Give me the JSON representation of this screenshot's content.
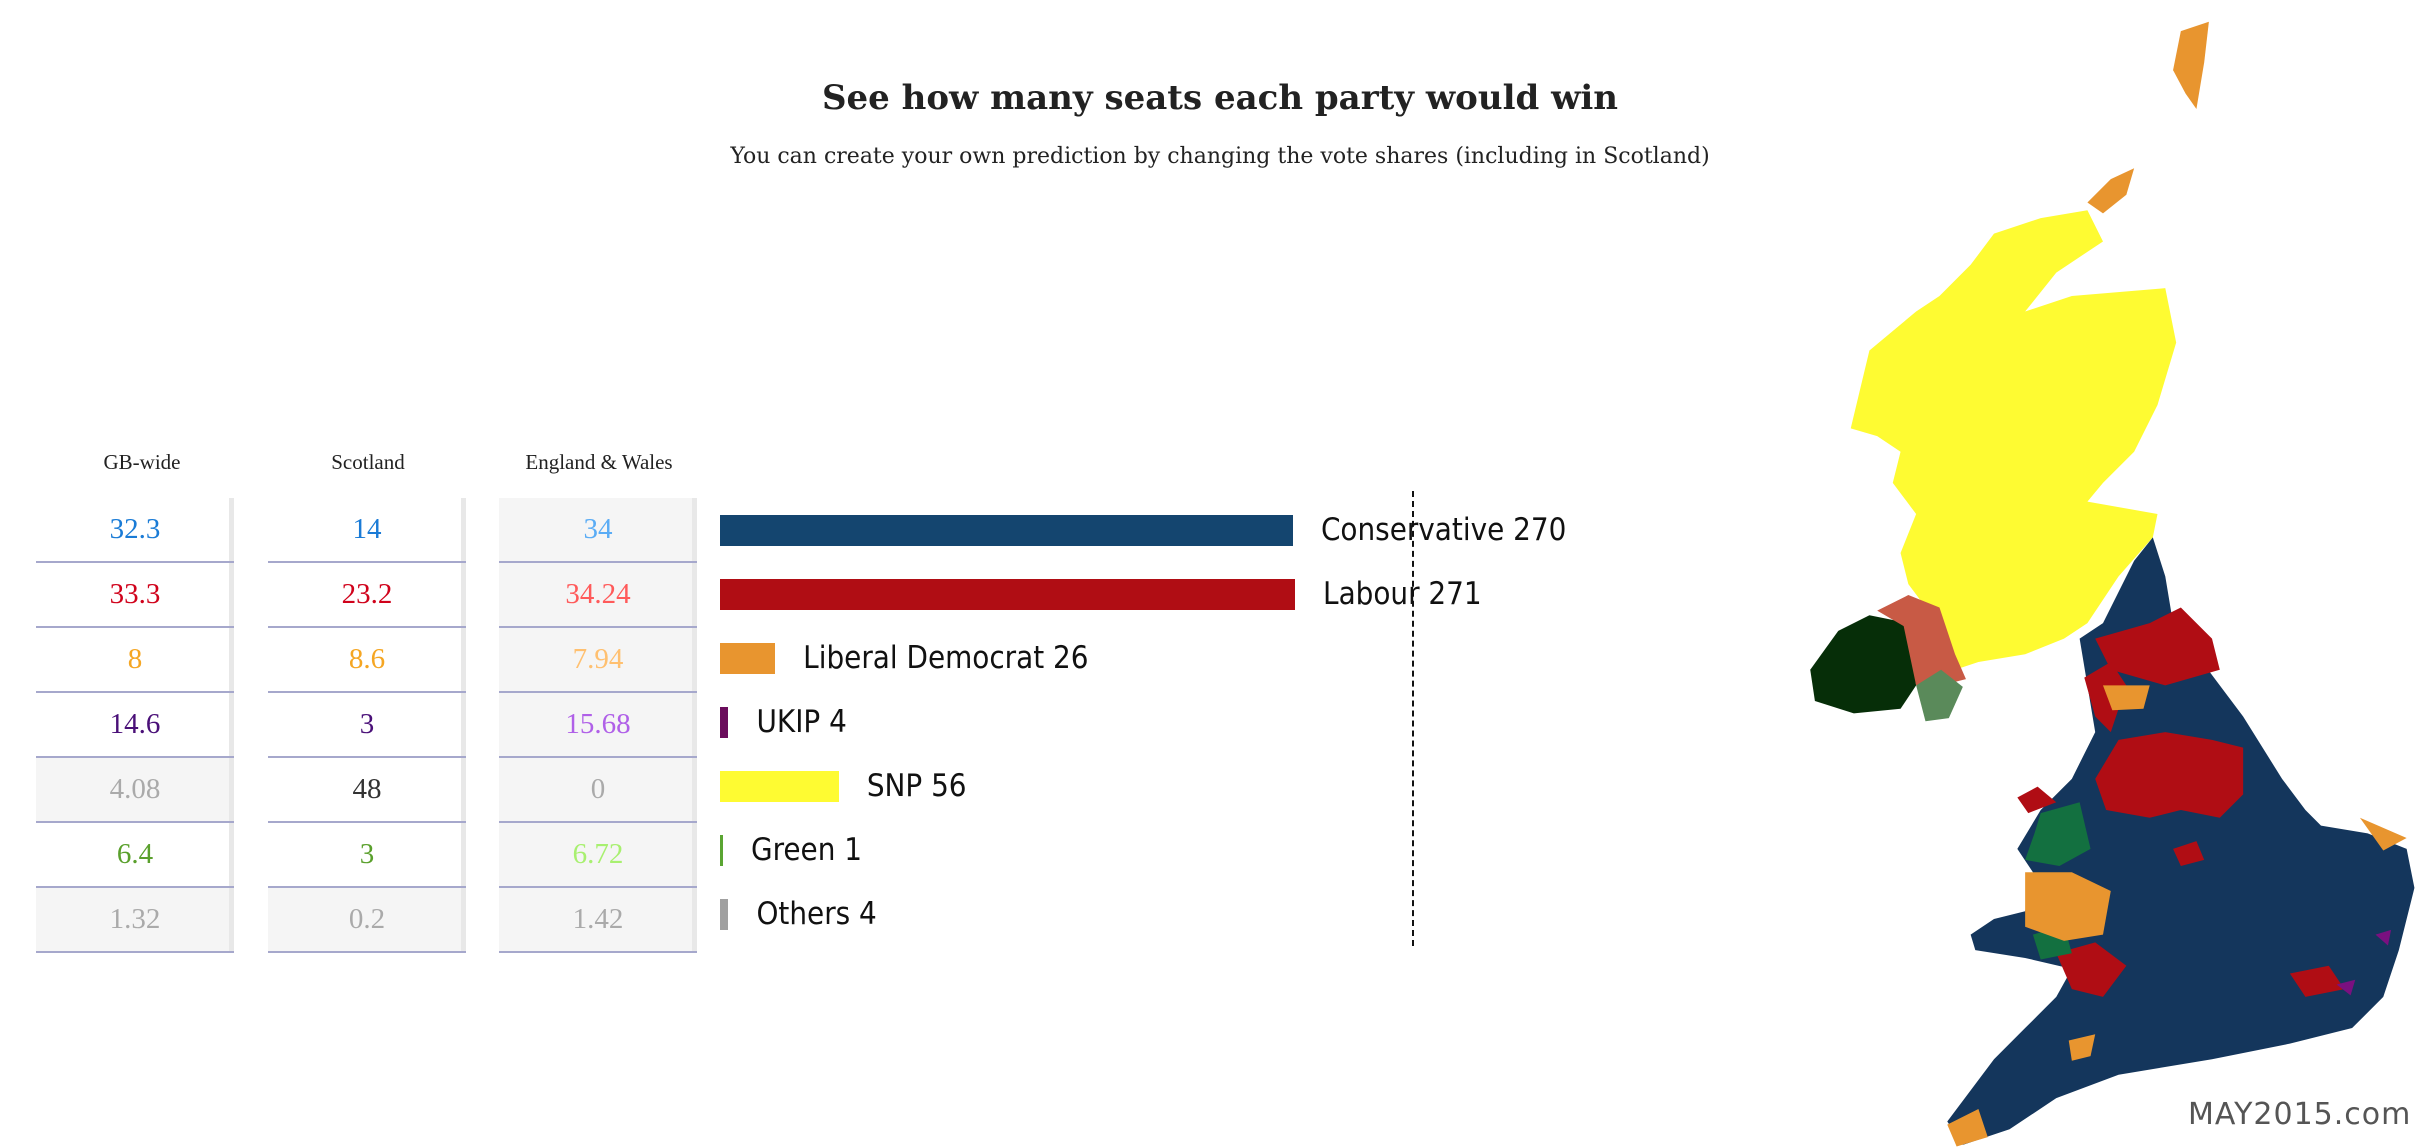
{
  "header": {
    "title": "See how many seats each party would win",
    "subtitle": "You can create your own prediction by changing the vote shares (including in Scotland)"
  },
  "vote_table": {
    "columns": [
      "GB-wide",
      "Scotland",
      "England & Wales"
    ],
    "rows": [
      {
        "party": "Conservative",
        "values": [
          "32.3",
          "14",
          "34"
        ],
        "colors": [
          "#1a7bd6",
          "#1a7bd6",
          "#5aacf5"
        ]
      },
      {
        "party": "Labour",
        "values": [
          "33.3",
          "23.2",
          "34.24"
        ],
        "colors": [
          "#d0021b",
          "#d0021b",
          "#ff5a5a"
        ]
      },
      {
        "party": "Liberal Democrat",
        "values": [
          "8",
          "8.6",
          "7.94"
        ],
        "colors": [
          "#f5a623",
          "#f5a623",
          "#ffc070"
        ]
      },
      {
        "party": "UKIP",
        "values": [
          "14.6",
          "3",
          "15.68"
        ],
        "colors": [
          "#4a1078",
          "#4a1078",
          "#b060e8"
        ]
      },
      {
        "party": "SNP",
        "values": [
          "4.08",
          "48",
          "0"
        ],
        "colors": [
          "#aaaaaa",
          "#333333",
          "#aaaaaa"
        ]
      },
      {
        "party": "Green",
        "values": [
          "6.4",
          "3",
          "6.72"
        ],
        "colors": [
          "#5aa02c",
          "#5aa02c",
          "#a8f070"
        ]
      },
      {
        "party": "Others",
        "values": [
          "1.32",
          "0.2",
          "1.42"
        ],
        "colors": [
          "#aaaaaa",
          "#aaaaaa",
          "#aaaaaa"
        ]
      }
    ],
    "grey_cells": [
      [
        4,
        0
      ],
      [
        6,
        0
      ],
      [
        6,
        1
      ],
      [
        0,
        2
      ],
      [
        1,
        2
      ],
      [
        2,
        2
      ],
      [
        3,
        2
      ],
      [
        4,
        2
      ],
      [
        5,
        2
      ],
      [
        6,
        2
      ]
    ]
  },
  "chart_data": {
    "type": "bar",
    "orientation": "horizontal",
    "categories": [
      "Conservative",
      "Labour",
      "Liberal Democrat",
      "UKIP",
      "SNP",
      "Green",
      "Others"
    ],
    "values": [
      270,
      271,
      26,
      4,
      56,
      1,
      4
    ],
    "labels": [
      "Conservative 270",
      "Labour 271",
      "Liberal Democrat 26",
      "UKIP 4",
      "SNP 56",
      "Green 1",
      "Others 4"
    ],
    "colors": [
      "#14456f",
      "#b00d14",
      "#e8952f",
      "#6b0d5c",
      "#fefb32",
      "#5aa532",
      "#a0a0a0"
    ],
    "reference_line": {
      "value": 326,
      "style": "dashed"
    },
    "grid": false
  },
  "map": {
    "party_colors": {
      "conservative": "#14365c",
      "labour": "#b00d14",
      "libdem": "#e8952f",
      "snp": "#fefb32",
      "plaid": "#137040",
      "ukip": "#7a1080",
      "dup": "#062e08",
      "sinn_fein": "#5a8a5a",
      "other_ni": "#c85a45"
    }
  },
  "brand": "MAY2015.com"
}
